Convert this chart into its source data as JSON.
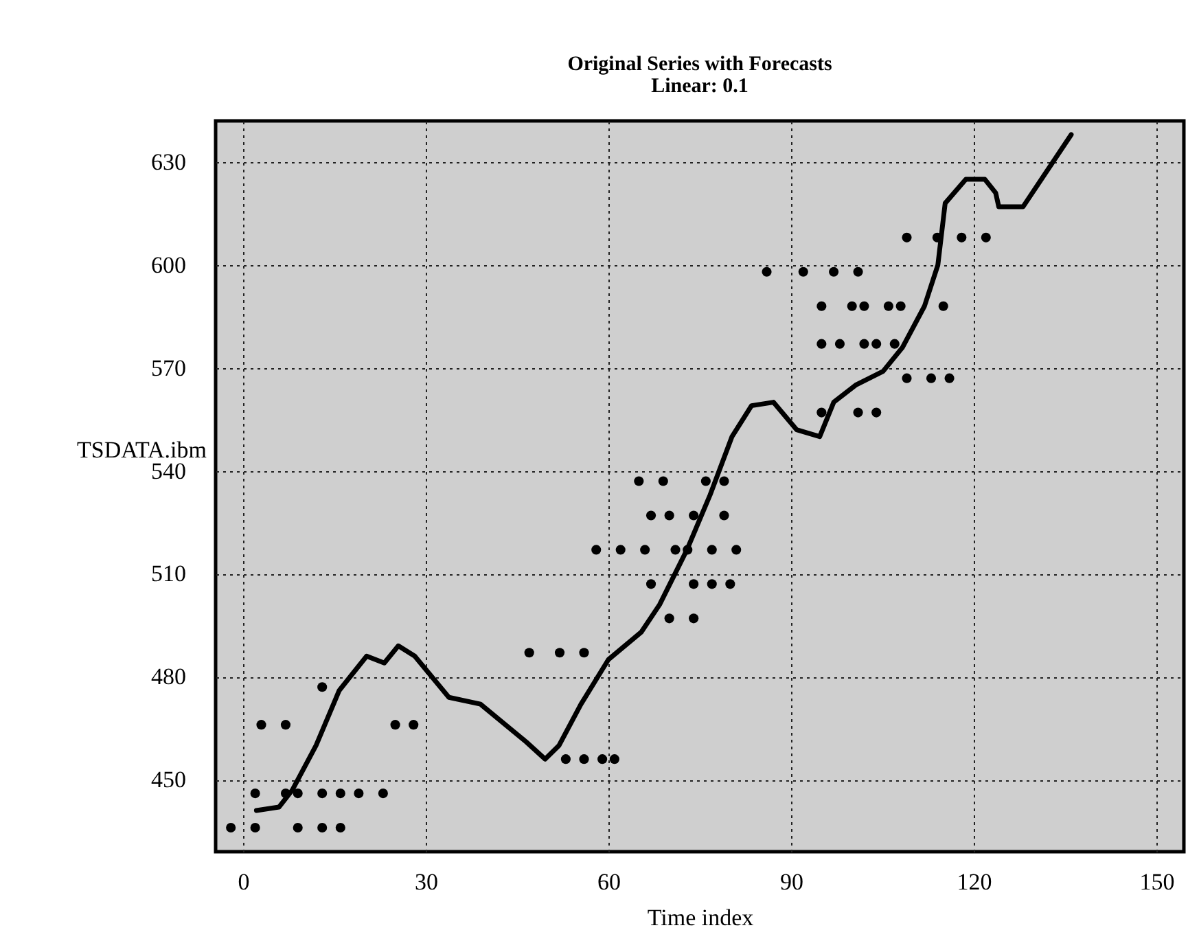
{
  "chart_data": {
    "type": "line",
    "title": "Original Series with Forecasts",
    "subtitle": "Linear: 0.1",
    "xlabel": "Time index",
    "ylabel": "TSDATA.ibm",
    "xlim": [
      -4.5,
      154.5
    ],
    "xticks": [
      0,
      30,
      60,
      90,
      120,
      150
    ],
    "ylim": [
      429,
      642
    ],
    "yticks": [
      450,
      480,
      510,
      540,
      570,
      600,
      630
    ],
    "grid": true,
    "series": [
      {
        "color": "#000000",
        "marker": "none",
        "x": [
          2.2,
          5.9,
          8.1,
          12,
          15.8,
          20.3,
          23.2,
          25.5,
          28.2,
          33.8,
          39,
          46.5,
          49.6,
          51.9,
          55.5,
          60,
          65.4,
          68.4,
          72.9,
          76.7,
          80.3,
          83.5,
          87.1,
          90.9,
          94.7,
          97,
          100.6,
          105.1,
          108.3,
          111.9,
          114.1,
          115.3,
          118.7,
          121.8,
          123.6,
          124.1,
          128.1,
          136
        ],
        "values": [
          441,
          442,
          447,
          460,
          476,
          486,
          484,
          489,
          486,
          474,
          472,
          461,
          456,
          460,
          472,
          485,
          493,
          501,
          517,
          533,
          550,
          559,
          560,
          552,
          550,
          560,
          565,
          569,
          576,
          588,
          600,
          618,
          625,
          625,
          621,
          617,
          617,
          638
        ]
      },
      {
        "type": "scatter",
        "color": "#000000",
        "marker": "circle",
        "x": [
          -2,
          2,
          9,
          13,
          16,
          2,
          7,
          9,
          13,
          16,
          19,
          23,
          3,
          7,
          13,
          25,
          28,
          47,
          52,
          56,
          53,
          56,
          59,
          61,
          58,
          62,
          66,
          71,
          73,
          77,
          81,
          67,
          74,
          77,
          80,
          70,
          74,
          65,
          69,
          76,
          79,
          67,
          70,
          74,
          79,
          109,
          114,
          118,
          122,
          86,
          92,
          97,
          101,
          95,
          100,
          102,
          106,
          108,
          115,
          95,
          98,
          102,
          104,
          107,
          109,
          113,
          116,
          95,
          101,
          104
        ],
        "values": [
          436,
          436,
          436,
          436,
          436,
          446,
          446,
          446,
          446,
          446,
          446,
          446,
          466,
          466,
          477,
          466,
          466,
          487,
          487,
          487,
          456,
          456,
          456,
          456,
          517,
          517,
          517,
          517,
          517,
          517,
          517,
          507,
          507,
          507,
          507,
          497,
          497,
          537,
          537,
          537,
          537,
          527,
          527,
          527,
          527,
          608,
          608,
          608,
          608,
          598,
          598,
          598,
          598,
          588,
          588,
          588,
          588,
          588,
          588,
          577,
          577,
          577,
          577,
          577,
          567,
          567,
          567,
          557,
          557,
          557
        ]
      }
    ]
  }
}
